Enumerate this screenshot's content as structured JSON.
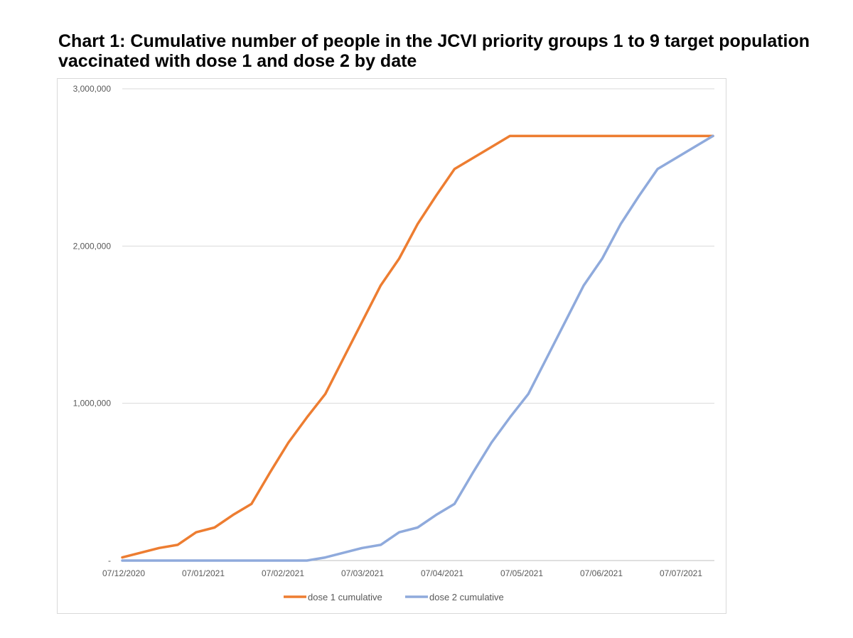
{
  "chart_data": {
    "type": "line",
    "title": "Chart 1: Cumulative number of people in the JCVI priority groups 1 to 9 target population vaccinated with dose 1 and dose 2 by date",
    "xlabel": "",
    "ylabel": "",
    "x_ticks": [
      "07/12/2020",
      "07/01/2021",
      "07/02/2021",
      "07/03/2021",
      "07/04/2021",
      "07/05/2021",
      "07/06/2021",
      "07/07/2021"
    ],
    "y_ticks": [
      {
        "value": 0,
        "label": "-"
      },
      {
        "value": 1000000,
        "label": "1,000,000"
      },
      {
        "value": 2000000,
        "label": "2,000,000"
      },
      {
        "value": 3000000,
        "label": "3,000,000"
      }
    ],
    "ylim": [
      0,
      3000000
    ],
    "x_range_weeks": [
      0,
      32
    ],
    "grid": true,
    "legend": "bottom",
    "series": [
      {
        "name": "dose 1 cumulative",
        "color": "#ed7d31",
        "x_weeks": [
          0,
          1,
          2,
          3,
          4,
          5,
          6,
          7,
          8,
          9,
          10,
          11,
          12,
          13,
          14,
          15,
          16,
          17,
          18,
          19,
          20,
          21,
          22,
          23,
          24,
          25,
          26,
          27,
          28,
          29,
          30,
          31,
          32
        ],
        "values": [
          20000,
          50000,
          80000,
          100000,
          180000,
          210000,
          290000,
          360000,
          560000,
          750000,
          910000,
          1060000,
          1290000,
          1520000,
          1750000,
          1920000,
          2140000,
          2320000,
          2490000,
          2560000,
          2630000,
          2700000,
          2700000,
          2700000,
          2700000,
          2700000,
          2700000,
          2700000,
          2700000,
          2700000,
          2700000,
          2700000,
          2700000
        ]
      },
      {
        "name": "dose 2 cumulative",
        "color": "#8faadc",
        "x_weeks": [
          0,
          1,
          2,
          3,
          4,
          5,
          6,
          7,
          8,
          9,
          10,
          11,
          12,
          13,
          14,
          15,
          16,
          17,
          18,
          19,
          20,
          21,
          22,
          23,
          24,
          25,
          26,
          27,
          28,
          29,
          30,
          31,
          32
        ],
        "values": [
          0,
          0,
          0,
          0,
          0,
          0,
          0,
          0,
          0,
          0,
          0,
          20000,
          50000,
          80000,
          100000,
          180000,
          210000,
          290000,
          360000,
          560000,
          750000,
          910000,
          1060000,
          1290000,
          1520000,
          1750000,
          1920000,
          2140000,
          2320000,
          2490000,
          2560000,
          2630000,
          2700000
        ]
      }
    ]
  }
}
